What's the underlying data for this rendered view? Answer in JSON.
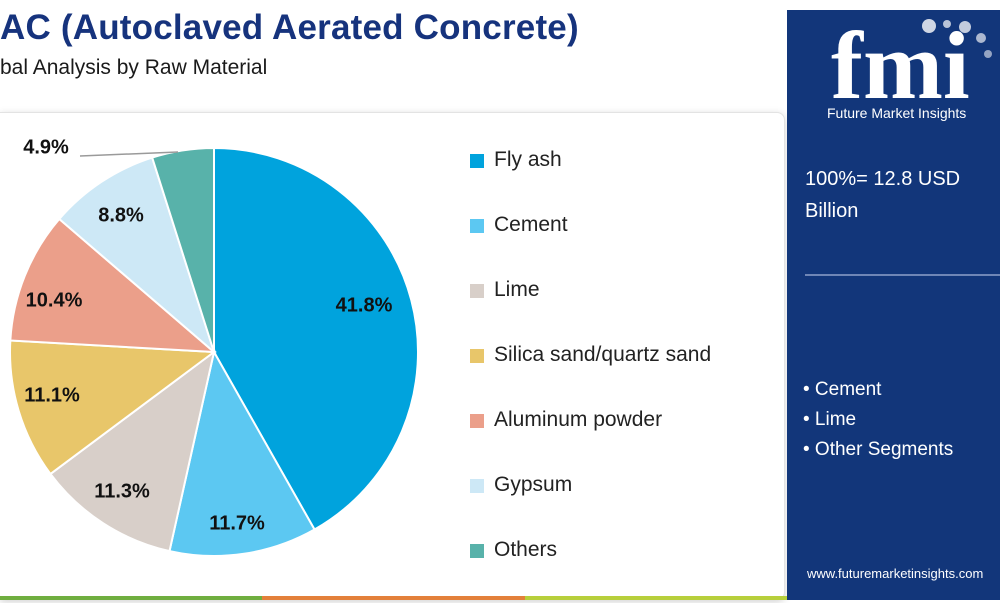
{
  "header": {
    "title": "AC (Autoclaved Aerated Concrete)",
    "subtitle": "bal Analysis by Raw Material"
  },
  "chart_data": {
    "type": "pie",
    "categories": [
      "Fly ash",
      "Cement",
      "Lime",
      "Silica sand/quartz sand",
      "Aluminum powder",
      "Gypsum",
      "Others"
    ],
    "values": [
      41.8,
      11.7,
      11.3,
      11.1,
      10.4,
      8.8,
      4.9
    ],
    "value_labels": [
      "41.8%",
      "11.7%",
      "11.3%",
      "11.1%",
      "10.4%",
      "8.8%",
      "4.9%"
    ],
    "colors": [
      "#00a3dd",
      "#5cc8f2",
      "#d8cfc9",
      "#e8c66a",
      "#eb9f8a",
      "#cde8f6",
      "#58b2aa"
    ],
    "legend_position": "right"
  },
  "sidebar": {
    "logo_text": "fmi",
    "brand": "Future Market Insights",
    "total_line1": "100%= 12.8 USD",
    "total_line2": "Billion",
    "bullets": [
      "• Cement",
      "• Lime",
      "• Other Segments"
    ],
    "website": "www.futuremarketinsights.com",
    "bg_color": "#12367a"
  },
  "bottom_colors": [
    "#6fae3f",
    "#e3803a",
    "#b7cf3b"
  ]
}
